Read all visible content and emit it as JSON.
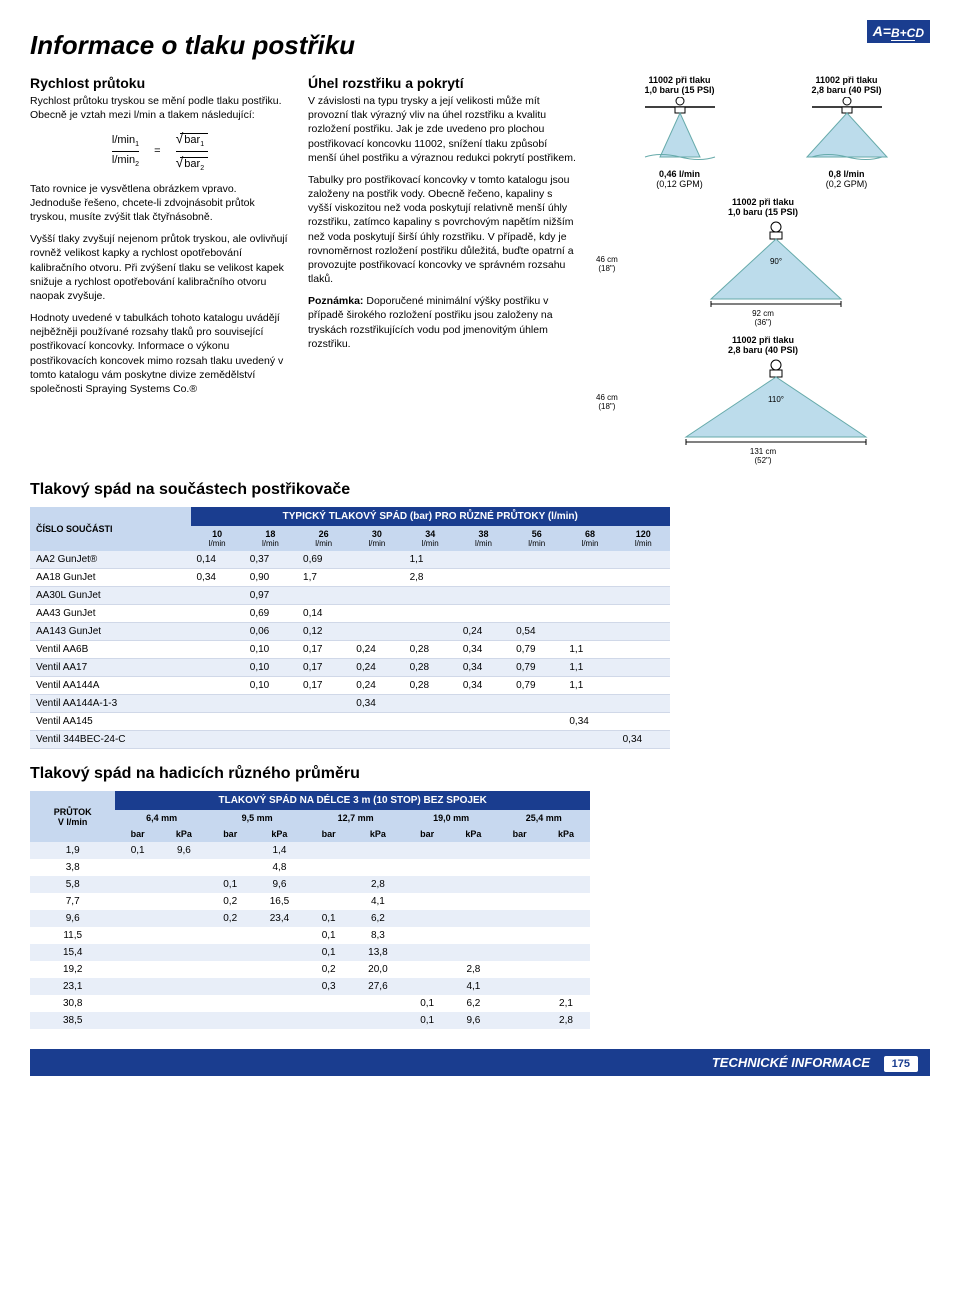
{
  "logo": {
    "a": "A=",
    "top": "B+C",
    "bot": "D"
  },
  "title": "Informace o tlaku postřiku",
  "left": {
    "h1": "Rychlost průtoku",
    "p1": "Rychlost průtoku tryskou se mění podle tlaku postřiku. Obecně je vztah mezi l/min a tlakem následující:",
    "formula": {
      "lmin": "l/min",
      "eq": "=",
      "bar": "bar",
      "s1": "1",
      "s2": "2"
    },
    "p2": "Tato rovnice je vysvětlena obrázkem vpravo. Jednoduše řešeno, chcete-li zdvojnásobit průtok tryskou, musíte zvýšit tlak čtyřnásobně.",
    "p3": "Vyšší tlaky zvyšují nejenom průtok tryskou, ale ovlivňují rovněž velikost kapky a rychlost opotřebování kalibračního otvoru. Při zvýšení tlaku se velikost kapek snižuje a rychlost opotřebování kalibračního otvoru naopak zvyšuje.",
    "p4": "Hodnoty uvedené v tabulkách tohoto katalogu uvádějí nejběžněji používané rozsahy tlaků pro související postřikovací koncovky. Informace o výkonu postřikovacích koncovek mimo rozsah tlaku uvedený v tomto katalogu vám poskytne divize zemědělství společnosti Spraying Systems Co.®"
  },
  "mid": {
    "h1": "Úhel rozstřiku a pokrytí",
    "p1": "V závislosti na typu trysky a její velikosti může mít provozní tlak výrazný vliv na úhel rozstřiku a kvalitu rozložení postřiku. Jak je zde uvedeno pro plochou postřikovací koncovku 11002, snížení tlaku způsobí menší úhel postřiku a výraznou redukci pokrytí postřikem.",
    "p2": "Tabulky pro postřikovací koncovky v tomto katalogu jsou založeny na postřik vody. Obecně řečeno, kapaliny s vyšší viskozitou než voda poskytují relativně menší úhly rozstřiku, zatímco kapaliny s povrchovým napětím nižším než voda poskytují širší úhly rozstřiku. V případě, kdy je rovnoměrnost rozložení postřiku důležitá, buďte opatrní a provozujte postřikovací koncovky ve správném rozsahu tlaků.",
    "noteLabel": "Poznámka:",
    "note": "Doporučené minimální výšky postřiku v případě širokého rozložení postřiku jsou založeny na tryskách rozstřikujících vodu pod jmenovitým úhlem rozstřiku."
  },
  "diagrams": {
    "top": [
      {
        "title1": "11002 při tlaku",
        "title2": "1,0 baru (15 PSI)",
        "sub1": "0,46 l/min",
        "sub2": "(0,12 GPM)",
        "narrow": true
      },
      {
        "title1": "11002 při tlaku",
        "title2": "2,8 baru (40 PSI)",
        "sub1": "0,8 l/min",
        "sub2": "(0,2 GPM)",
        "narrow": false
      }
    ],
    "wide1": {
      "title1": "11002 při tlaku",
      "title2": "1,0 baru (15 PSI)",
      "height": "46 cm",
      "heightIn": "(18\")",
      "angle": "90°",
      "width": "92 cm",
      "widthIn": "(36\")"
    },
    "wide2": {
      "title1": "11002 při tlaku",
      "title2": "2,8 baru (40 PSI)",
      "height": "46 cm",
      "heightIn": "(18\")",
      "angle": "110°",
      "width": "131 cm",
      "widthIn": "(52\")"
    }
  },
  "table1": {
    "title": "Tlakový spád na součástech postřikovače",
    "band": "TYPICKÝ TLAKOVÝ SPÁD (bar) PRO RŮZNÉ PRŮTOKY (l/min)",
    "rowLabel": "ČÍSLO SOUČÁSTI",
    "cols": [
      "10",
      "18",
      "26",
      "30",
      "34",
      "38",
      "56",
      "68",
      "120"
    ],
    "unit": "l/min",
    "rows": [
      {
        "name": "AA2 GunJet®",
        "v": [
          "0,14",
          "0,37",
          "0,69",
          "",
          "1,1",
          "",
          "",
          "",
          ""
        ]
      },
      {
        "name": "AA18 GunJet",
        "v": [
          "0,34",
          "0,90",
          "1,7",
          "",
          "2,8",
          "",
          "",
          "",
          ""
        ]
      },
      {
        "name": "AA30L GunJet",
        "v": [
          "",
          "0,97",
          "",
          "",
          "",
          "",
          "",
          "",
          ""
        ]
      },
      {
        "name": "AA43 GunJet",
        "v": [
          "",
          "0,69",
          "0,14",
          "",
          "",
          "",
          "",
          "",
          ""
        ]
      },
      {
        "name": "AA143 GunJet",
        "v": [
          "",
          "0,06",
          "0,12",
          "",
          "",
          "0,24",
          "0,54",
          "",
          ""
        ]
      },
      {
        "name": "Ventil AA6B",
        "v": [
          "",
          "0,10",
          "0,17",
          "0,24",
          "0,28",
          "0,34",
          "0,79",
          "1,1",
          ""
        ]
      },
      {
        "name": "Ventil AA17",
        "v": [
          "",
          "0,10",
          "0,17",
          "0,24",
          "0,28",
          "0,34",
          "0,79",
          "1,1",
          ""
        ]
      },
      {
        "name": "Ventil AA144A",
        "v": [
          "",
          "0,10",
          "0,17",
          "0,24",
          "0,28",
          "0,34",
          "0,79",
          "1,1",
          ""
        ]
      },
      {
        "name": "Ventil AA144A-1-3",
        "v": [
          "",
          "",
          "",
          "0,34",
          "",
          "",
          "",
          "",
          ""
        ]
      },
      {
        "name": "Ventil AA145",
        "v": [
          "",
          "",
          "",
          "",
          "",
          "",
          "",
          "0,34",
          ""
        ]
      },
      {
        "name": "Ventil 344BEC-24-C",
        "v": [
          "",
          "",
          "",
          "",
          "",
          "",
          "",
          "",
          "0,34"
        ]
      }
    ]
  },
  "table2": {
    "title": "Tlakový spád na hadicích různého průměru",
    "band": "TLAKOVÝ SPÁD NA DÉLCE 3 m (10 STOP) BEZ SPOJEK",
    "rowLabel1": "PRŮTOK",
    "rowLabel2": "V l/min",
    "sizes": [
      "6,4 mm",
      "9,5 mm",
      "12,7 mm",
      "19,0 mm",
      "25,4 mm"
    ],
    "units": [
      "bar",
      "kPa"
    ],
    "rows": [
      {
        "flow": "1,9",
        "v": [
          "0,1",
          "9,6",
          "",
          "1,4",
          "",
          "",
          "",
          "",
          "",
          ""
        ]
      },
      {
        "flow": "3,8",
        "v": [
          "",
          "",
          "",
          "4,8",
          "",
          "",
          "",
          "",
          "",
          ""
        ]
      },
      {
        "flow": "5,8",
        "v": [
          "",
          "",
          "0,1",
          "9,6",
          "",
          "2,8",
          "",
          "",
          "",
          ""
        ]
      },
      {
        "flow": "7,7",
        "v": [
          "",
          "",
          "0,2",
          "16,5",
          "",
          "4,1",
          "",
          "",
          "",
          ""
        ]
      },
      {
        "flow": "9,6",
        "v": [
          "",
          "",
          "0,2",
          "23,4",
          "0,1",
          "6,2",
          "",
          "",
          "",
          ""
        ]
      },
      {
        "flow": "11,5",
        "v": [
          "",
          "",
          "",
          "",
          "0,1",
          "8,3",
          "",
          "",
          "",
          ""
        ]
      },
      {
        "flow": "15,4",
        "v": [
          "",
          "",
          "",
          "",
          "0,1",
          "13,8",
          "",
          "",
          "",
          ""
        ]
      },
      {
        "flow": "19,2",
        "v": [
          "",
          "",
          "",
          "",
          "0,2",
          "20,0",
          "",
          "2,8",
          "",
          ""
        ]
      },
      {
        "flow": "23,1",
        "v": [
          "",
          "",
          "",
          "",
          "0,3",
          "27,6",
          "",
          "4,1",
          "",
          ""
        ]
      },
      {
        "flow": "30,8",
        "v": [
          "",
          "",
          "",
          "",
          "",
          "",
          "0,1",
          "6,2",
          "",
          "2,1"
        ]
      },
      {
        "flow": "38,5",
        "v": [
          "",
          "",
          "",
          "",
          "",
          "",
          "0,1",
          "9,6",
          "",
          "2,8"
        ]
      }
    ]
  },
  "footer": {
    "text": "TECHNICKÉ INFORMACE",
    "page": "175"
  },
  "colors": {
    "brand": "#1a3d8f",
    "band": "#c7d8ef",
    "row": "#e8eef8",
    "spray": "#bcdceb"
  }
}
